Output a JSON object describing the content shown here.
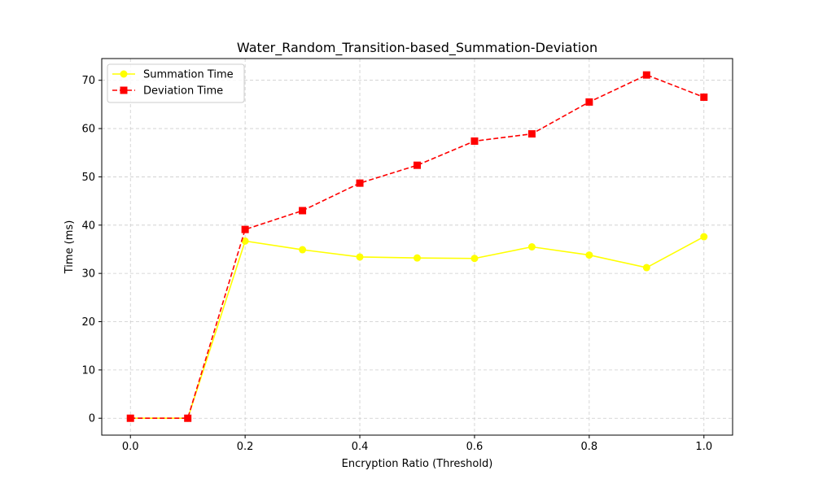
{
  "chart_data": {
    "type": "line",
    "title": "Water_Random_Transition-based_Summation-Deviation",
    "xlabel": "Encryption Ratio (Threshold)",
    "ylabel": "Time (ms)",
    "x": [
      0.0,
      0.1,
      0.2,
      0.3,
      0.4,
      0.5,
      0.6,
      0.7,
      0.8,
      0.9,
      1.0
    ],
    "xlim": [
      -0.05,
      1.05
    ],
    "ylim": [
      -3.5,
      74.5
    ],
    "xticks": [
      0.0,
      0.2,
      0.4,
      0.6,
      0.8,
      1.0
    ],
    "xtick_labels": [
      "0.0",
      "0.2",
      "0.4",
      "0.6",
      "0.8",
      "1.0"
    ],
    "yticks": [
      0,
      10,
      20,
      30,
      40,
      50,
      60,
      70
    ],
    "ytick_labels": [
      "0",
      "10",
      "20",
      "30",
      "40",
      "50",
      "60",
      "70"
    ],
    "grid": true,
    "legend_position": "top-left",
    "series": [
      {
        "name": "Summation Time",
        "color": "#ffff00",
        "marker": "circle",
        "line_style": "solid",
        "values": [
          0.0,
          0.0,
          36.7,
          34.9,
          33.4,
          33.2,
          33.1,
          35.5,
          33.8,
          31.2,
          37.6
        ]
      },
      {
        "name": "Deviation Time",
        "color": "#ff0000",
        "marker": "square",
        "line_style": "dashed",
        "values": [
          0.0,
          0.0,
          39.1,
          43.0,
          48.7,
          52.4,
          57.4,
          58.9,
          65.5,
          71.1,
          66.5
        ]
      }
    ]
  }
}
